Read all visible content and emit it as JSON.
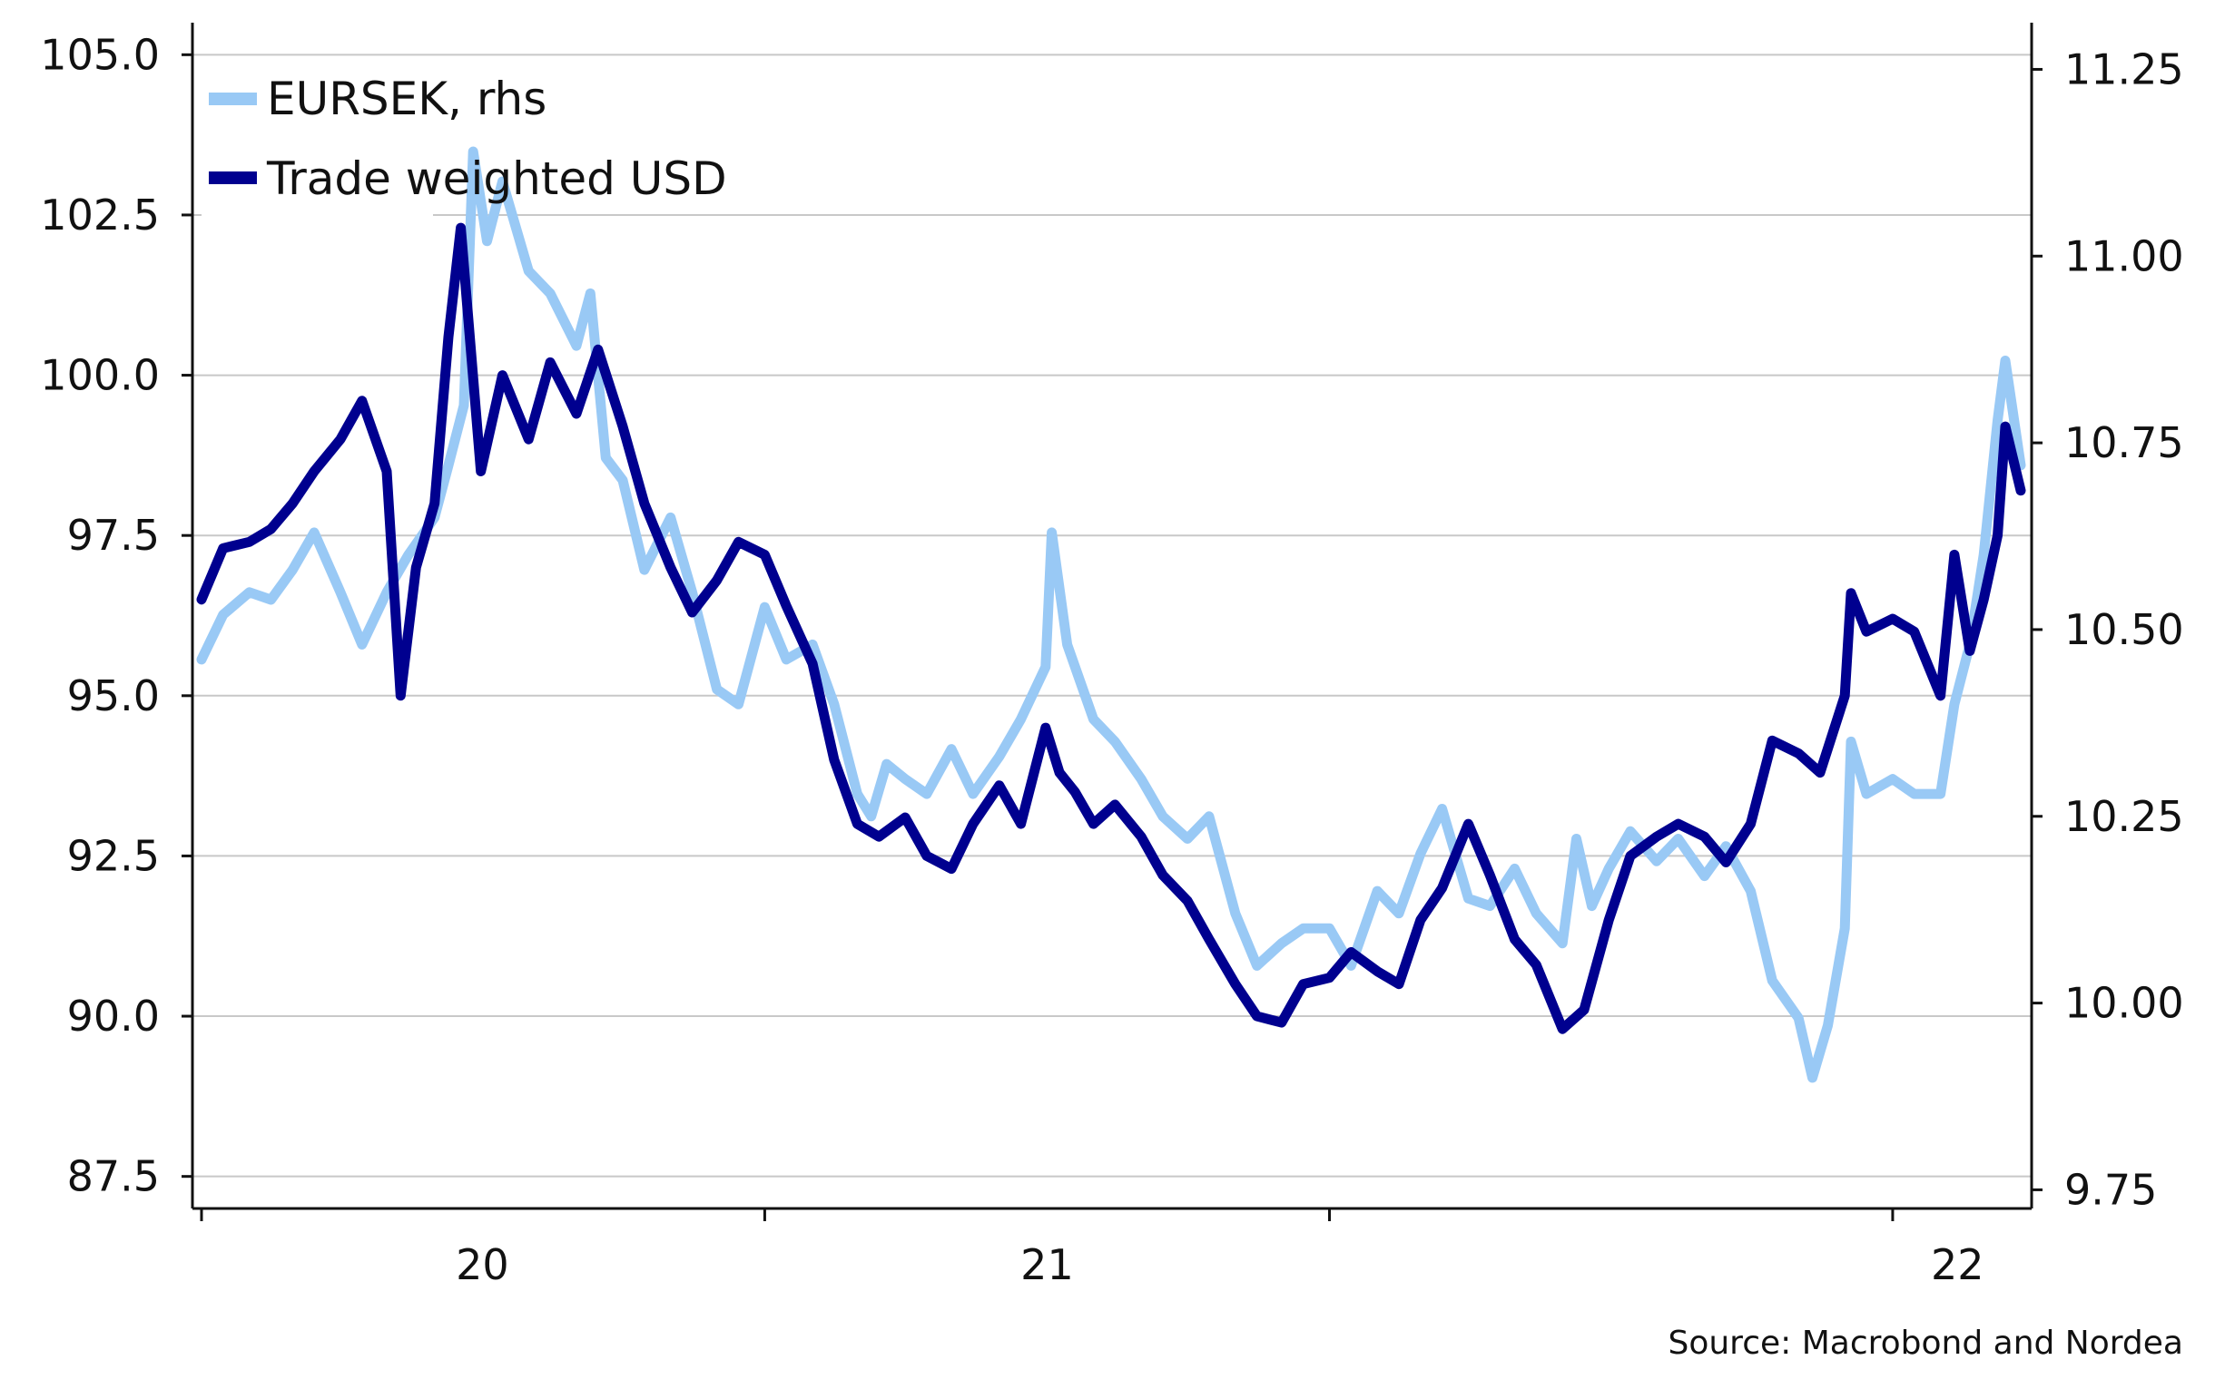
{
  "chart_data": {
    "type": "line",
    "title": "",
    "xlabel": "",
    "ylabel": "",
    "source": "Source: Macrobond and Nordea",
    "legend": {
      "placement": "top-left"
    },
    "grid": true,
    "x_ticks": [
      "20",
      "21",
      "22"
    ],
    "y_left": {
      "ticks": [
        "87.5",
        "90.0",
        "92.5",
        "95.0",
        "97.5",
        "100.0",
        "102.5",
        "105.0"
      ],
      "range": [
        87.0,
        105.5
      ]
    },
    "y_right": {
      "ticks": [
        "9.75",
        "10.00",
        "10.25",
        "10.50",
        "10.75",
        "11.00",
        "11.25"
      ],
      "range": [
        9.725,
        11.3125
      ]
    },
    "x_range": [
      "2019-01-01",
      "2022-03-25"
    ],
    "series": [
      {
        "name": "EURSEK, rhs",
        "axis": "right",
        "color": "#99c9f5",
        "points": [
          [
            "2019-01-01",
            10.46
          ],
          [
            "2019-01-15",
            10.52
          ],
          [
            "2019-02-01",
            10.55
          ],
          [
            "2019-02-15",
            10.54
          ],
          [
            "2019-03-01",
            10.58
          ],
          [
            "2019-03-15",
            10.63
          ],
          [
            "2019-04-01",
            10.55
          ],
          [
            "2019-04-15",
            10.48
          ],
          [
            "2019-05-01",
            10.55
          ],
          [
            "2019-05-15",
            10.6
          ],
          [
            "2019-06-01",
            10.65
          ],
          [
            "2019-06-10",
            10.72
          ],
          [
            "2019-06-20",
            10.8
          ],
          [
            "2019-06-26",
            11.14
          ],
          [
            "2019-07-05",
            11.02
          ],
          [
            "2019-07-15",
            11.1
          ],
          [
            "2019-08-01",
            10.98
          ],
          [
            "2019-08-15",
            10.95
          ],
          [
            "2019-09-01",
            10.88
          ],
          [
            "2019-09-10",
            10.95
          ],
          [
            "2019-09-20",
            10.73
          ],
          [
            "2019-10-01",
            10.7
          ],
          [
            "2019-10-15",
            10.58
          ],
          [
            "2019-11-01",
            10.65
          ],
          [
            "2019-11-15",
            10.55
          ],
          [
            "2019-12-01",
            10.42
          ],
          [
            "2019-12-15",
            10.4
          ],
          [
            "2020-01-01",
            10.53
          ],
          [
            "2020-01-15",
            10.46
          ],
          [
            "2020-02-01",
            10.48
          ],
          [
            "2020-02-15",
            10.4
          ],
          [
            "2020-03-01",
            10.28
          ],
          [
            "2020-03-10",
            10.25
          ],
          [
            "2020-03-20",
            10.32
          ],
          [
            "2020-04-01",
            10.3
          ],
          [
            "2020-04-15",
            10.28
          ],
          [
            "2020-05-01",
            10.34
          ],
          [
            "2020-05-15",
            10.28
          ],
          [
            "2020-06-01",
            10.33
          ],
          [
            "2020-06-15",
            10.38
          ],
          [
            "2020-07-01",
            10.45
          ],
          [
            "2020-07-05",
            10.63
          ],
          [
            "2020-07-15",
            10.48
          ],
          [
            "2020-08-01",
            10.38
          ],
          [
            "2020-08-15",
            10.35
          ],
          [
            "2020-09-01",
            10.3
          ],
          [
            "2020-09-15",
            10.25
          ],
          [
            "2020-10-01",
            10.22
          ],
          [
            "2020-10-15",
            10.25
          ],
          [
            "2020-11-01",
            10.12
          ],
          [
            "2020-11-15",
            10.05
          ],
          [
            "2020-12-01",
            10.08
          ],
          [
            "2020-12-15",
            10.1
          ],
          [
            "2021-01-01",
            10.1
          ],
          [
            "2021-01-15",
            10.05
          ],
          [
            "2021-02-01",
            10.15
          ],
          [
            "2021-02-15",
            10.12
          ],
          [
            "2021-03-01",
            10.2
          ],
          [
            "2021-03-15",
            10.26
          ],
          [
            "2021-04-01",
            10.14
          ],
          [
            "2021-04-15",
            10.13
          ],
          [
            "2021-05-01",
            10.18
          ],
          [
            "2021-05-15",
            10.12
          ],
          [
            "2021-06-01",
            10.08
          ],
          [
            "2021-06-10",
            10.22
          ],
          [
            "2021-06-20",
            10.13
          ],
          [
            "2021-07-01",
            10.18
          ],
          [
            "2021-07-15",
            10.23
          ],
          [
            "2021-08-01",
            10.19
          ],
          [
            "2021-08-15",
            10.22
          ],
          [
            "2021-09-01",
            10.17
          ],
          [
            "2021-09-15",
            10.21
          ],
          [
            "2021-10-01",
            10.15
          ],
          [
            "2021-10-15",
            10.03
          ],
          [
            "2021-11-01",
            9.98
          ],
          [
            "2021-11-10",
            9.9
          ],
          [
            "2021-11-20",
            9.97
          ],
          [
            "2021-12-01",
            10.1
          ],
          [
            "2021-12-05",
            10.35
          ],
          [
            "2021-12-15",
            10.28
          ],
          [
            "2022-01-01",
            10.3
          ],
          [
            "2022-01-15",
            10.28
          ],
          [
            "2022-02-01",
            10.28
          ],
          [
            "2022-02-10",
            10.4
          ],
          [
            "2022-02-20",
            10.48
          ],
          [
            "2022-03-01",
            10.6
          ],
          [
            "2022-03-10",
            10.78
          ],
          [
            "2022-03-15",
            10.86
          ],
          [
            "2022-03-25",
            10.72
          ]
        ]
      },
      {
        "name": "Trade weighted USD",
        "axis": "left",
        "color": "#00008f",
        "points": [
          [
            "2019-01-01",
            96.5
          ],
          [
            "2019-01-15",
            97.3
          ],
          [
            "2019-02-01",
            97.4
          ],
          [
            "2019-02-15",
            97.6
          ],
          [
            "2019-03-01",
            98.0
          ],
          [
            "2019-03-15",
            98.5
          ],
          [
            "2019-04-01",
            99.0
          ],
          [
            "2019-04-15",
            99.6
          ],
          [
            "2019-05-01",
            98.5
          ],
          [
            "2019-05-10",
            95.0
          ],
          [
            "2019-05-20",
            97.0
          ],
          [
            "2019-06-01",
            98.0
          ],
          [
            "2019-06-10",
            100.6
          ],
          [
            "2019-06-18",
            102.3
          ],
          [
            "2019-07-01",
            98.5
          ],
          [
            "2019-07-15",
            100.0
          ],
          [
            "2019-08-01",
            99.0
          ],
          [
            "2019-08-15",
            100.2
          ],
          [
            "2019-09-01",
            99.4
          ],
          [
            "2019-09-15",
            100.4
          ],
          [
            "2019-10-01",
            99.2
          ],
          [
            "2019-10-15",
            98.0
          ],
          [
            "2019-11-01",
            97.0
          ],
          [
            "2019-11-15",
            96.3
          ],
          [
            "2019-12-01",
            96.8
          ],
          [
            "2019-12-15",
            97.4
          ],
          [
            "2020-01-01",
            97.2
          ],
          [
            "2020-01-15",
            96.4
          ],
          [
            "2020-02-01",
            95.5
          ],
          [
            "2020-02-15",
            94.0
          ],
          [
            "2020-03-01",
            93.0
          ],
          [
            "2020-03-15",
            92.8
          ],
          [
            "2020-04-01",
            93.1
          ],
          [
            "2020-04-15",
            92.5
          ],
          [
            "2020-05-01",
            92.3
          ],
          [
            "2020-05-15",
            93.0
          ],
          [
            "2020-06-01",
            93.6
          ],
          [
            "2020-06-15",
            93.0
          ],
          [
            "2020-07-01",
            94.5
          ],
          [
            "2020-07-10",
            93.8
          ],
          [
            "2020-07-20",
            93.5
          ],
          [
            "2020-08-01",
            93.0
          ],
          [
            "2020-08-15",
            93.3
          ],
          [
            "2020-09-01",
            92.8
          ],
          [
            "2020-09-15",
            92.2
          ],
          [
            "2020-10-01",
            91.8
          ],
          [
            "2020-10-15",
            91.2
          ],
          [
            "2020-11-01",
            90.5
          ],
          [
            "2020-11-15",
            90.0
          ],
          [
            "2020-12-01",
            89.9
          ],
          [
            "2020-12-15",
            90.5
          ],
          [
            "2021-01-01",
            90.6
          ],
          [
            "2021-01-15",
            91.0
          ],
          [
            "2021-02-01",
            90.7
          ],
          [
            "2021-02-15",
            90.5
          ],
          [
            "2021-03-01",
            91.5
          ],
          [
            "2021-03-15",
            92.0
          ],
          [
            "2021-04-01",
            93.0
          ],
          [
            "2021-04-15",
            92.2
          ],
          [
            "2021-05-01",
            91.2
          ],
          [
            "2021-05-15",
            90.8
          ],
          [
            "2021-06-01",
            89.8
          ],
          [
            "2021-06-15",
            90.1
          ],
          [
            "2021-07-01",
            91.5
          ],
          [
            "2021-07-15",
            92.5
          ],
          [
            "2021-08-01",
            92.8
          ],
          [
            "2021-08-15",
            93.0
          ],
          [
            "2021-09-01",
            92.8
          ],
          [
            "2021-09-15",
            92.4
          ],
          [
            "2021-10-01",
            93.0
          ],
          [
            "2021-10-15",
            94.3
          ],
          [
            "2021-11-01",
            94.1
          ],
          [
            "2021-11-15",
            93.8
          ],
          [
            "2021-12-01",
            95.0
          ],
          [
            "2021-12-05",
            96.6
          ],
          [
            "2021-12-15",
            96.0
          ],
          [
            "2022-01-01",
            96.2
          ],
          [
            "2022-01-15",
            96.0
          ],
          [
            "2022-02-01",
            95.0
          ],
          [
            "2022-02-10",
            97.2
          ],
          [
            "2022-02-20",
            95.7
          ],
          [
            "2022-03-01",
            96.5
          ],
          [
            "2022-03-10",
            97.5
          ],
          [
            "2022-03-15",
            99.2
          ],
          [
            "2022-03-25",
            98.2
          ]
        ]
      }
    ]
  }
}
